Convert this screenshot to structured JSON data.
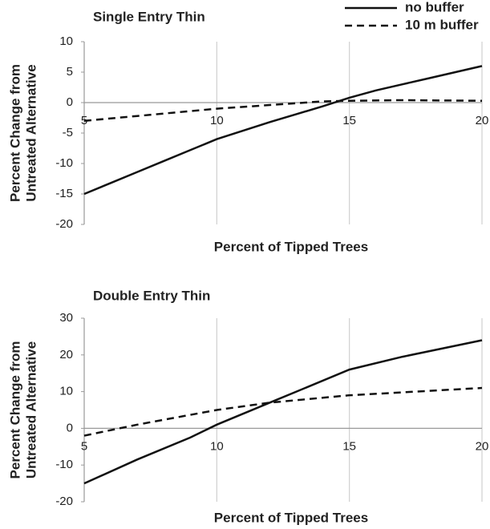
{
  "chart_data": [
    {
      "type": "line",
      "title": "Single Entry Thin",
      "xlabel": "Percent of Tipped Trees",
      "ylabel": [
        "Percent Change from",
        "Untreated Alternative"
      ],
      "xlim": [
        5,
        20
      ],
      "ylim": [
        -20,
        10
      ],
      "xticks": [
        5,
        10,
        15,
        20
      ],
      "yticks": [
        -20,
        -15,
        -10,
        -5,
        0,
        5,
        10
      ],
      "grid": true,
      "legend": "top-right",
      "series": [
        {
          "name": "no buffer",
          "color": "#111111",
          "dash": false,
          "x": [
            5,
            6,
            7,
            8,
            9,
            10,
            11,
            12,
            13,
            14,
            15,
            16,
            17,
            18,
            19,
            20
          ],
          "values": [
            -15,
            -13.2,
            -11.4,
            -9.6,
            -7.8,
            -6,
            -4.6,
            -3.2,
            -1.9,
            -0.6,
            0.8,
            2,
            3,
            4,
            5,
            6
          ]
        },
        {
          "name": "10 m buffer",
          "color": "#111111",
          "dash": true,
          "x": [
            5,
            7,
            10,
            12,
            14,
            15,
            17,
            20
          ],
          "values": [
            -3,
            -2.2,
            -1,
            -0.4,
            0.2,
            0.3,
            0.4,
            0.3
          ]
        }
      ]
    },
    {
      "type": "line",
      "title": "Double Entry Thin",
      "xlabel": "Percent of Tipped Trees",
      "ylabel": [
        "Percent Change from",
        "Untreated Alternative"
      ],
      "xlim": [
        5,
        20
      ],
      "ylim": [
        -20,
        30
      ],
      "xticks": [
        5,
        10,
        15,
        20
      ],
      "yticks": [
        -20,
        -10,
        0,
        10,
        20,
        30
      ],
      "grid": true,
      "series": [
        {
          "color": "#111111",
          "dash": false,
          "x": [
            5,
            7,
            9,
            10,
            11,
            12,
            13,
            15,
            17,
            20
          ],
          "values": [
            -15,
            -8.5,
            -2.5,
            1,
            4,
            7,
            10,
            16,
            19.5,
            24
          ]
        },
        {
          "color": "#111111",
          "dash": true,
          "x": [
            5,
            7,
            10,
            12,
            15,
            20
          ],
          "values": [
            -2,
            1,
            5,
            7,
            9,
            11
          ]
        }
      ]
    }
  ]
}
